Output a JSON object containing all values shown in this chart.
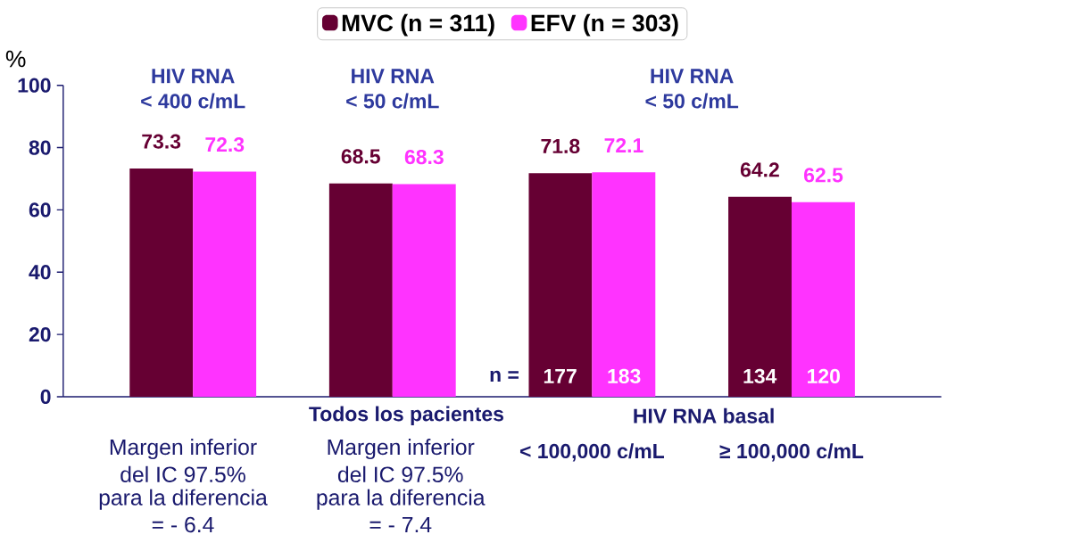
{
  "chart_data": {
    "type": "bar",
    "ylabel": "%",
    "categories": [
      null,
      null,
      "< 100,000 c/mL",
      "≥ 100,000 c/mL"
    ],
    "series": [
      {
        "name": "MVC (n = 311)",
        "color": "#660033",
        "values": [
          73.3,
          68.5,
          71.8,
          64.2
        ]
      },
      {
        "name": "EFV (n = 303)",
        "color": "#ff33ff",
        "values": [
          72.3,
          68.3,
          72.1,
          62.5
        ]
      }
    ],
    "ylim": [
      0,
      100
    ],
    "yticks": [
      0,
      20,
      40,
      60,
      80,
      100
    ],
    "grid": false,
    "legend": "top",
    "data_labels": true,
    "annotations": [
      "HIV RNA",
      "< 400 c/mL",
      "HIV RNA",
      "< 50 c/mL",
      "HIV RNA",
      "< 50 c/mL",
      "n =",
      "177",
      "183",
      "134",
      "120",
      "Todos los pacientes",
      "HIV RNA basal",
      "Margen  inferior",
      "del IC  97.5%",
      "para la diferencia",
      "= - 6.4",
      "Margen  inferior",
      "del IC  97.5%",
      "para la diferencia",
      "= - 7.4"
    ]
  }
}
